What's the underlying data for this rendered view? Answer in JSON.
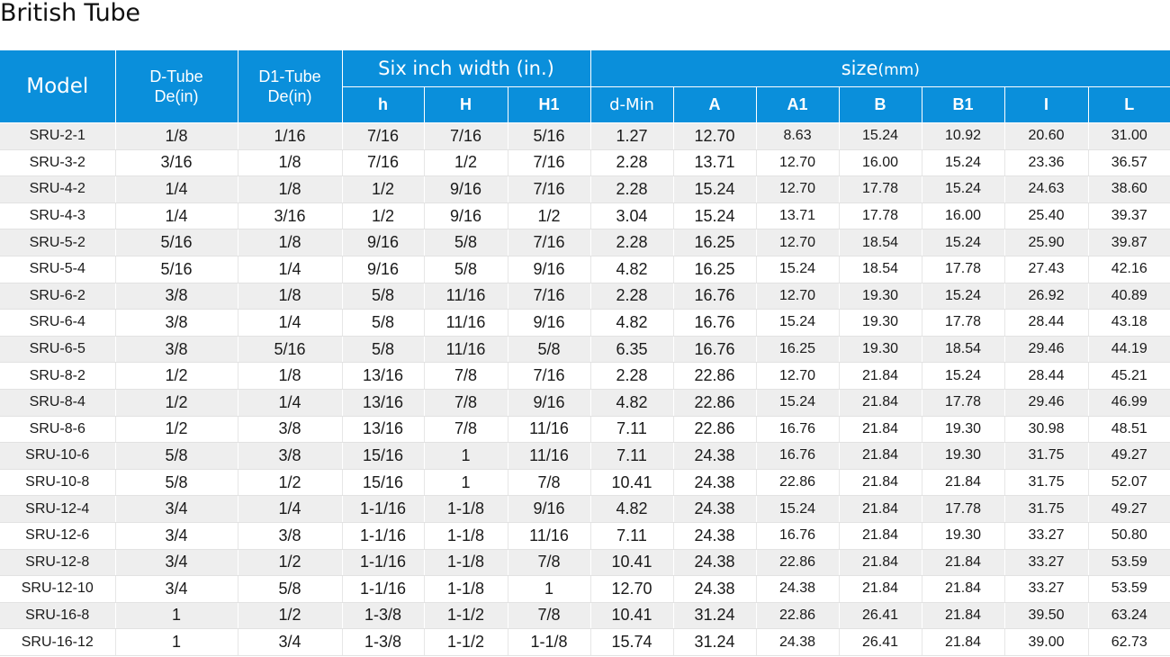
{
  "title": "British Tube",
  "header": {
    "model": "Model",
    "d_tube": "D-Tube",
    "d_tube_unit": "De(in)",
    "d1_tube": "D1-Tube",
    "d1_tube_unit": "De(in)",
    "six_inch_group": "Six inch width (in.)",
    "size_group": "size",
    "size_unit": "(mm)",
    "sub": [
      "h",
      "H",
      "H1",
      "d-Min",
      "A",
      "A1",
      "B",
      "B1",
      "I",
      "L"
    ]
  },
  "colors": {
    "header_bg": "#0a8fdb",
    "header_text": "#ffffff",
    "row_alt_bg": "#eeeeee"
  },
  "rows": [
    [
      "SRU-2-1",
      "1/8",
      "1/16",
      "7/16",
      "7/16",
      "5/16",
      "1.27",
      "12.70",
      "8.63",
      "15.24",
      "10.92",
      "20.60",
      "31.00"
    ],
    [
      "SRU-3-2",
      "3/16",
      "1/8",
      "7/16",
      "1/2",
      "7/16",
      "2.28",
      "13.71",
      "12.70",
      "16.00",
      "15.24",
      "23.36",
      "36.57"
    ],
    [
      "SRU-4-2",
      "1/4",
      "1/8",
      "1/2",
      "9/16",
      "7/16",
      "2.28",
      "15.24",
      "12.70",
      "17.78",
      "15.24",
      "24.63",
      "38.60"
    ],
    [
      "SRU-4-3",
      "1/4",
      "3/16",
      "1/2",
      "9/16",
      "1/2",
      "3.04",
      "15.24",
      "13.71",
      "17.78",
      "16.00",
      "25.40",
      "39.37"
    ],
    [
      "SRU-5-2",
      "5/16",
      "1/8",
      "9/16",
      "5/8",
      "7/16",
      "2.28",
      "16.25",
      "12.70",
      "18.54",
      "15.24",
      "25.90",
      "39.87"
    ],
    [
      "SRU-5-4",
      "5/16",
      "1/4",
      "9/16",
      "5/8",
      "9/16",
      "4.82",
      "16.25",
      "15.24",
      "18.54",
      "17.78",
      "27.43",
      "42.16"
    ],
    [
      "SRU-6-2",
      "3/8",
      "1/8",
      "5/8",
      "11/16",
      "7/16",
      "2.28",
      "16.76",
      "12.70",
      "19.30",
      "15.24",
      "26.92",
      "40.89"
    ],
    [
      "SRU-6-4",
      "3/8",
      "1/4",
      "5/8",
      "11/16",
      "9/16",
      "4.82",
      "16.76",
      "15.24",
      "19.30",
      "17.78",
      "28.44",
      "43.18"
    ],
    [
      "SRU-6-5",
      "3/8",
      "5/16",
      "5/8",
      "11/16",
      "5/8",
      "6.35",
      "16.76",
      "16.25",
      "19.30",
      "18.54",
      "29.46",
      "44.19"
    ],
    [
      "SRU-8-2",
      "1/2",
      "1/8",
      "13/16",
      "7/8",
      "7/16",
      "2.28",
      "22.86",
      "12.70",
      "21.84",
      "15.24",
      "28.44",
      "45.21"
    ],
    [
      "SRU-8-4",
      "1/2",
      "1/4",
      "13/16",
      "7/8",
      "9/16",
      "4.82",
      "22.86",
      "15.24",
      "21.84",
      "17.78",
      "29.46",
      "46.99"
    ],
    [
      "SRU-8-6",
      "1/2",
      "3/8",
      "13/16",
      "7/8",
      "11/16",
      "7.11",
      "22.86",
      "16.76",
      "21.84",
      "19.30",
      "30.98",
      "48.51"
    ],
    [
      "SRU-10-6",
      "5/8",
      "3/8",
      "15/16",
      "1",
      "11/16",
      "7.11",
      "24.38",
      "16.76",
      "21.84",
      "19.30",
      "31.75",
      "49.27"
    ],
    [
      "SRU-10-8",
      "5/8",
      "1/2",
      "15/16",
      "1",
      "7/8",
      "10.41",
      "24.38",
      "22.86",
      "21.84",
      "21.84",
      "31.75",
      "52.07"
    ],
    [
      "SRU-12-4",
      "3/4",
      "1/4",
      "1-1/16",
      "1-1/8",
      "9/16",
      "4.82",
      "24.38",
      "15.24",
      "21.84",
      "17.78",
      "31.75",
      "49.27"
    ],
    [
      "SRU-12-6",
      "3/4",
      "3/8",
      "1-1/16",
      "1-1/8",
      "11/16",
      "7.11",
      "24.38",
      "16.76",
      "21.84",
      "19.30",
      "33.27",
      "50.80"
    ],
    [
      "SRU-12-8",
      "3/4",
      "1/2",
      "1-1/16",
      "1-1/8",
      "7/8",
      "10.41",
      "24.38",
      "22.86",
      "21.84",
      "21.84",
      "33.27",
      "53.59"
    ],
    [
      "SRU-12-10",
      "3/4",
      "5/8",
      "1-1/16",
      "1-1/8",
      "1",
      "12.70",
      "24.38",
      "24.38",
      "21.84",
      "21.84",
      "33.27",
      "53.59"
    ],
    [
      "SRU-16-8",
      "1",
      "1/2",
      "1-3/8",
      "1-1/2",
      "7/8",
      "10.41",
      "31.24",
      "22.86",
      "26.41",
      "21.84",
      "39.50",
      "63.24"
    ],
    [
      "SRU-16-12",
      "1",
      "3/4",
      "1-3/8",
      "1-1/2",
      "1-1/8",
      "15.74",
      "31.24",
      "24.38",
      "26.41",
      "21.84",
      "39.00",
      "62.73"
    ]
  ]
}
